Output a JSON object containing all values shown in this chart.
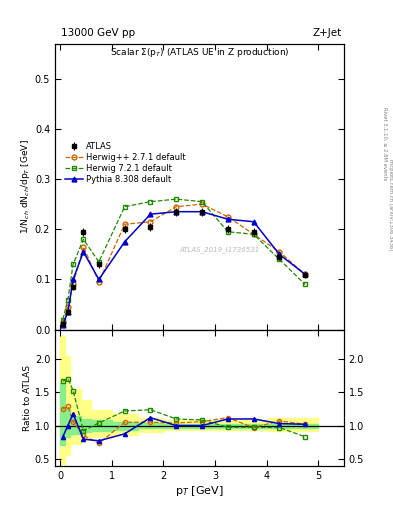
{
  "title_top": "13000 GeV pp",
  "title_right": "Z+Jet",
  "plot_title": "Scalar Σ(pₜ) (ATLAS UE in Z production)",
  "watermark": "ATLAS_2019_I1736531",
  "right_label": "Rivet 3.1.10, ≥ 2.8M events",
  "right_label2": "mcplots.cern.ch [arXiv:1306.3436]",
  "ylabel_main": "1/N$_{ch}$ dN$_{ch}$/dp$_T$ [GeV]",
  "ylabel_ratio": "Ratio to ATLAS",
  "xlabel": "p$_T$ [GeV]",
  "xlim": [
    -0.1,
    5.5
  ],
  "ylim_main": [
    0,
    0.57
  ],
  "ylim_ratio": [
    0.39,
    2.45
  ],
  "atlas_x": [
    0.05,
    0.15,
    0.25,
    0.45,
    0.75,
    1.25,
    1.75,
    2.25,
    2.75,
    3.25,
    3.75,
    4.25,
    4.75
  ],
  "atlas_y": [
    0.012,
    0.035,
    0.085,
    0.195,
    0.13,
    0.2,
    0.205,
    0.235,
    0.235,
    0.2,
    0.195,
    0.145,
    0.108
  ],
  "atlas_yerr": [
    0.002,
    0.004,
    0.006,
    0.008,
    0.007,
    0.008,
    0.008,
    0.008,
    0.008,
    0.008,
    0.008,
    0.006,
    0.005
  ],
  "herwig1_x": [
    0.05,
    0.15,
    0.25,
    0.45,
    0.75,
    1.25,
    1.75,
    2.25,
    2.75,
    3.25,
    3.75,
    4.25,
    4.75
  ],
  "herwig1_y": [
    0.015,
    0.045,
    0.09,
    0.165,
    0.095,
    0.21,
    0.215,
    0.245,
    0.25,
    0.225,
    0.19,
    0.155,
    0.11
  ],
  "herwig2_x": [
    0.05,
    0.15,
    0.25,
    0.45,
    0.75,
    1.25,
    1.75,
    2.25,
    2.75,
    3.25,
    3.75,
    4.25,
    4.75
  ],
  "herwig2_y": [
    0.02,
    0.06,
    0.13,
    0.18,
    0.135,
    0.245,
    0.255,
    0.26,
    0.255,
    0.195,
    0.19,
    0.14,
    0.09
  ],
  "pythia_x": [
    0.05,
    0.15,
    0.25,
    0.45,
    0.75,
    1.25,
    1.75,
    2.25,
    2.75,
    3.25,
    3.75,
    4.25,
    4.75
  ],
  "pythia_y": [
    0.01,
    0.035,
    0.1,
    0.155,
    0.1,
    0.175,
    0.23,
    0.235,
    0.235,
    0.22,
    0.215,
    0.15,
    0.11
  ],
  "ratio_herwig1_y": [
    1.25,
    1.29,
    1.06,
    0.85,
    0.73,
    1.05,
    1.05,
    1.04,
    1.06,
    1.12,
    0.97,
    1.07,
    1.02
  ],
  "ratio_herwig2_y": [
    1.67,
    1.71,
    1.53,
    0.92,
    1.04,
    1.22,
    1.24,
    1.1,
    1.085,
    0.975,
    0.975,
    0.97,
    0.83
  ],
  "ratio_pythia_y": [
    0.83,
    1.0,
    1.18,
    0.795,
    0.77,
    0.875,
    1.12,
    1.0,
    1.0,
    1.1,
    1.1,
    1.03,
    1.02
  ],
  "band_x_lo": [
    0.0,
    0.1,
    0.2,
    0.4,
    0.6,
    1.0,
    1.5,
    2.0,
    2.5,
    3.0,
    3.5,
    4.0,
    4.5
  ],
  "band_x_hi": [
    0.1,
    0.2,
    0.4,
    0.6,
    1.0,
    1.5,
    2.0,
    2.5,
    3.0,
    3.5,
    4.0,
    4.5,
    5.0
  ],
  "band_green_low": [
    0.7,
    0.82,
    0.88,
    0.9,
    0.92,
    0.94,
    0.96,
    0.97,
    0.97,
    0.97,
    0.97,
    0.97,
    0.97
  ],
  "band_green_high": [
    1.65,
    1.25,
    1.15,
    1.1,
    1.08,
    1.06,
    1.04,
    1.03,
    1.03,
    1.03,
    1.03,
    1.03,
    1.03
  ],
  "band_yellow_low": [
    0.42,
    0.55,
    0.72,
    0.78,
    0.82,
    0.86,
    0.9,
    0.93,
    0.94,
    0.94,
    0.94,
    0.92,
    0.92
  ],
  "band_yellow_high": [
    2.35,
    2.05,
    1.55,
    1.38,
    1.24,
    1.18,
    1.12,
    1.08,
    1.08,
    1.08,
    1.08,
    1.12,
    1.12
  ],
  "color_atlas": "#000000",
  "color_herwig1": "#cc6600",
  "color_herwig2": "#228800",
  "color_pythia": "#0000cc",
  "color_band_green": "#88ee88",
  "color_band_yellow": "#ffff88",
  "legend_order": [
    "ATLAS",
    "Herwig++ 2.7.1 default",
    "Herwig 7.2.1 default",
    "Pythia 8.308 default"
  ]
}
